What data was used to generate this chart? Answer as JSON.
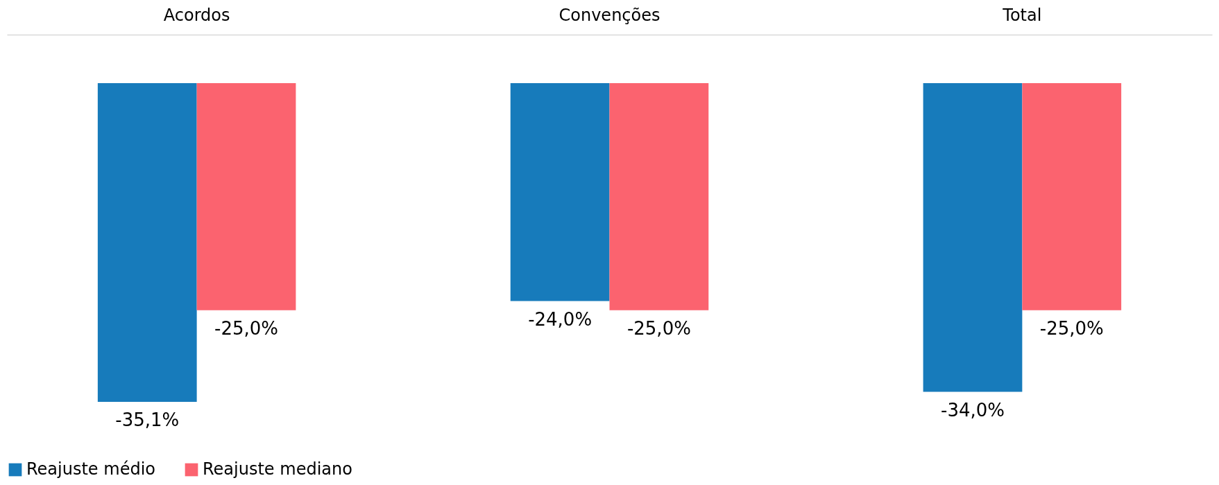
{
  "chart_data": {
    "type": "bar",
    "categories": [
      "Acordos",
      "Convenções",
      "Total"
    ],
    "series": [
      {
        "name": "Reajuste médio",
        "color": "#177bbb",
        "values": [
          -35.1,
          -24.0,
          -34.0
        ],
        "value_labels": [
          "-35,1%",
          "-24,0%",
          "-34,0%"
        ]
      },
      {
        "name": "Reajuste mediano",
        "color": "#fb636f",
        "values": [
          -25.0,
          -25.0,
          -25.0
        ],
        "value_labels": [
          "-25,0%",
          "-25,0%",
          "-25,0%"
        ]
      }
    ],
    "grid": false,
    "legend": "bottom"
  }
}
